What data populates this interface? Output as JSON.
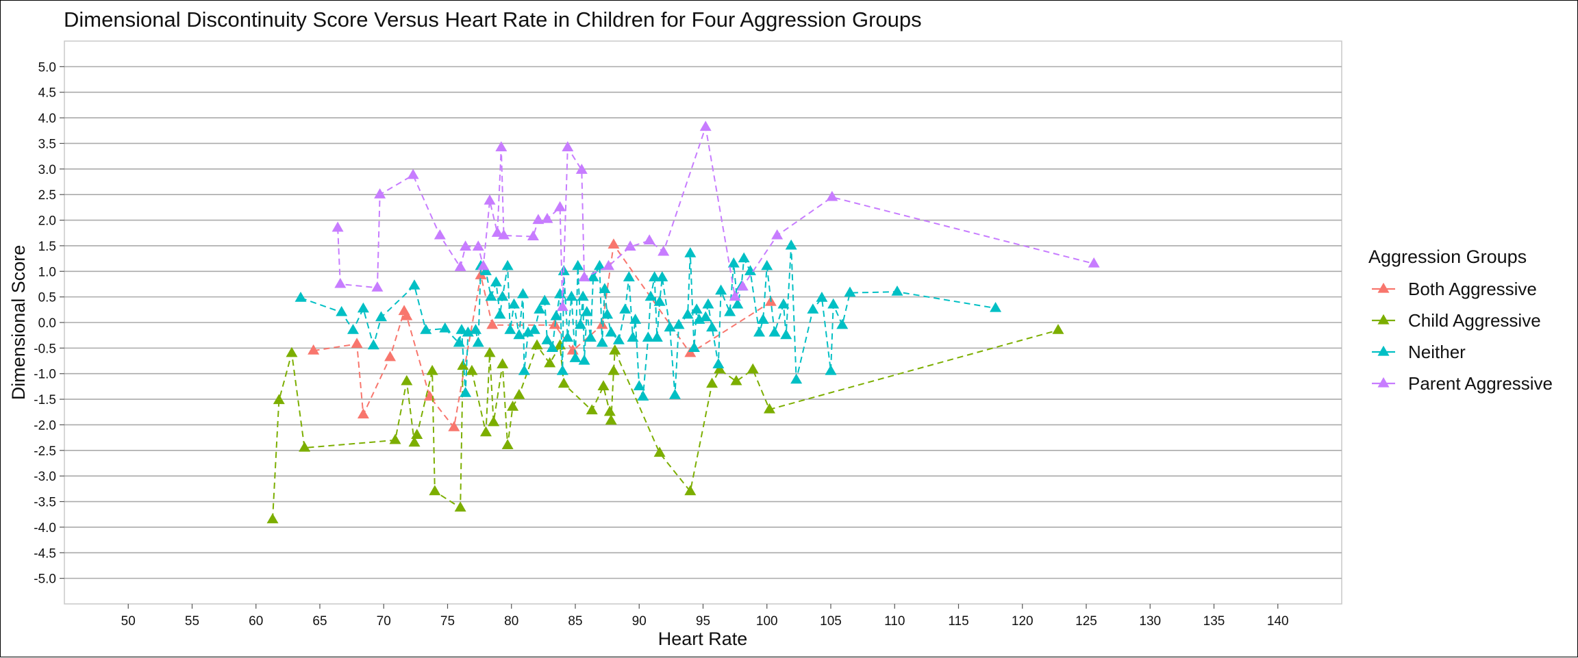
{
  "chart_data": {
    "type": "line",
    "title": "Dimensional Discontinuity Score Versus Heart Rate in Children for Four Aggression Groups",
    "xlabel": "Heart Rate",
    "ylabel": "Dimensional Score",
    "xlim": [
      45,
      145
    ],
    "ylim": [
      -5.5,
      5.5
    ],
    "x_ticks": [
      50,
      55,
      60,
      65,
      70,
      75,
      80,
      85,
      90,
      95,
      100,
      105,
      110,
      115,
      120,
      125,
      130,
      135,
      140
    ],
    "y_ticks": [
      5.0,
      4.5,
      4.0,
      3.5,
      3.0,
      2.5,
      2.0,
      1.5,
      1.0,
      0.5,
      0.0,
      -0.5,
      -1.0,
      -1.5,
      -2.0,
      -2.5,
      -3.0,
      -3.5,
      -4.0,
      -4.5,
      -5.0
    ],
    "y_tick_labels": [
      "5.0",
      "4.5",
      "4.0",
      "3.5",
      "3.0",
      "2.5",
      "2.0",
      "1.5",
      "1.0",
      "0.5",
      "0.0",
      "-0.5",
      "-1.0",
      "-1.5",
      "-2.0",
      "-2.5",
      "-3.0",
      "-3.5",
      "-4.0",
      "-4.5",
      "-5.0"
    ],
    "grid": "horizontal",
    "marker": "triangle",
    "line_style": "dashed",
    "legend_title": "Aggression Groups",
    "legend_position": "right",
    "series": [
      {
        "name": "Both Aggressive",
        "color": "#F8766D",
        "points": [
          [
            64.5,
            -0.55
          ],
          [
            67.9,
            -0.42
          ],
          [
            68.4,
            -1.8
          ],
          [
            70.5,
            -0.68
          ],
          [
            71.6,
            0.22
          ],
          [
            71.8,
            0.12
          ],
          [
            73.6,
            -1.45
          ],
          [
            75.5,
            -2.05
          ],
          [
            77.6,
            0.92
          ],
          [
            78.5,
            -0.05
          ],
          [
            83.4,
            -0.05
          ],
          [
            84.8,
            -0.55
          ],
          [
            87.1,
            -0.05
          ],
          [
            88.0,
            1.52
          ],
          [
            94.0,
            -0.6
          ],
          [
            100.3,
            0.4
          ]
        ]
      },
      {
        "name": "Child Aggressive",
        "color": "#7CAE00",
        "points": [
          [
            61.3,
            -3.85
          ],
          [
            61.8,
            -1.52
          ],
          [
            62.8,
            -0.6
          ],
          [
            63.8,
            -2.45
          ],
          [
            70.9,
            -2.3
          ],
          [
            71.8,
            -1.15
          ],
          [
            72.4,
            -2.35
          ],
          [
            72.6,
            -2.2
          ],
          [
            73.8,
            -0.95
          ],
          [
            74.0,
            -3.3
          ],
          [
            76.0,
            -3.62
          ],
          [
            76.2,
            -0.85
          ],
          [
            76.9,
            -0.95
          ],
          [
            78.0,
            -2.15
          ],
          [
            78.3,
            -0.6
          ],
          [
            78.6,
            -1.95
          ],
          [
            79.3,
            -0.82
          ],
          [
            79.7,
            -2.4
          ],
          [
            80.1,
            -1.65
          ],
          [
            80.6,
            -1.42
          ],
          [
            82.0,
            -0.45
          ],
          [
            83.0,
            -0.8
          ],
          [
            83.8,
            -0.45
          ],
          [
            84.1,
            -1.2
          ],
          [
            86.3,
            -1.72
          ],
          [
            87.2,
            -1.25
          ],
          [
            87.7,
            -1.75
          ],
          [
            87.8,
            -1.92
          ],
          [
            88.0,
            -0.95
          ],
          [
            88.1,
            -0.55
          ],
          [
            91.6,
            -2.55
          ],
          [
            94.0,
            -3.3
          ],
          [
            95.7,
            -1.2
          ],
          [
            96.3,
            -0.92
          ],
          [
            97.6,
            -1.15
          ],
          [
            98.9,
            -0.92
          ],
          [
            100.2,
            -1.7
          ],
          [
            122.8,
            -0.15
          ]
        ]
      },
      {
        "name": "Neither",
        "color": "#00BFC4",
        "points": [
          [
            63.5,
            0.48
          ],
          [
            66.7,
            0.2
          ],
          [
            67.6,
            -0.15
          ],
          [
            68.4,
            0.27
          ],
          [
            69.2,
            -0.45
          ],
          [
            69.8,
            0.1
          ],
          [
            72.4,
            0.72
          ],
          [
            73.3,
            -0.15
          ],
          [
            74.8,
            -0.12
          ],
          [
            75.9,
            -0.4
          ],
          [
            76.1,
            -0.15
          ],
          [
            76.4,
            -1.38
          ],
          [
            76.6,
            -0.2
          ],
          [
            77.2,
            -0.15
          ],
          [
            77.4,
            -0.4
          ],
          [
            77.6,
            1.1
          ],
          [
            78.0,
            1.0
          ],
          [
            78.4,
            0.5
          ],
          [
            78.8,
            0.78
          ],
          [
            79.1,
            0.15
          ],
          [
            79.3,
            0.5
          ],
          [
            79.7,
            1.1
          ],
          [
            79.9,
            -0.15
          ],
          [
            80.2,
            0.35
          ],
          [
            80.6,
            -0.25
          ],
          [
            80.9,
            0.55
          ],
          [
            81.0,
            -0.95
          ],
          [
            81.3,
            -0.2
          ],
          [
            81.8,
            -0.15
          ],
          [
            82.2,
            0.25
          ],
          [
            82.6,
            0.42
          ],
          [
            82.8,
            -0.35
          ],
          [
            83.2,
            -0.5
          ],
          [
            83.5,
            0.12
          ],
          [
            83.8,
            0.55
          ],
          [
            84.0,
            -0.95
          ],
          [
            84.1,
            1.0
          ],
          [
            84.4,
            -0.3
          ],
          [
            84.7,
            0.5
          ],
          [
            85.0,
            -0.7
          ],
          [
            85.2,
            1.1
          ],
          [
            85.4,
            -0.05
          ],
          [
            85.6,
            0.5
          ],
          [
            85.7,
            -0.75
          ],
          [
            85.9,
            0.2
          ],
          [
            86.2,
            -0.3
          ],
          [
            86.4,
            0.88
          ],
          [
            86.9,
            1.1
          ],
          [
            87.1,
            -0.4
          ],
          [
            87.3,
            0.65
          ],
          [
            87.5,
            0.15
          ],
          [
            87.8,
            -0.2
          ],
          [
            88.4,
            -0.35
          ],
          [
            88.9,
            0.25
          ],
          [
            89.2,
            0.88
          ],
          [
            89.5,
            -0.3
          ],
          [
            89.7,
            0.05
          ],
          [
            90.0,
            -1.25
          ],
          [
            90.3,
            -1.45
          ],
          [
            90.7,
            -0.3
          ],
          [
            90.9,
            0.5
          ],
          [
            91.2,
            0.88
          ],
          [
            91.4,
            -0.3
          ],
          [
            91.6,
            0.4
          ],
          [
            91.8,
            0.88
          ],
          [
            92.4,
            -0.1
          ],
          [
            92.8,
            -1.42
          ],
          [
            93.1,
            -0.05
          ],
          [
            93.8,
            0.15
          ],
          [
            94.0,
            1.35
          ],
          [
            94.3,
            -0.5
          ],
          [
            94.5,
            0.25
          ],
          [
            94.7,
            0.05
          ],
          [
            95.2,
            0.1
          ],
          [
            95.4,
            0.35
          ],
          [
            95.7,
            -0.1
          ],
          [
            96.2,
            -0.82
          ],
          [
            96.4,
            0.62
          ],
          [
            97.1,
            0.2
          ],
          [
            97.4,
            1.15
          ],
          [
            97.7,
            0.35
          ],
          [
            98.0,
            0.7
          ],
          [
            98.2,
            1.25
          ],
          [
            98.7,
            1.0
          ],
          [
            99.4,
            -0.2
          ],
          [
            99.7,
            0.05
          ],
          [
            100.0,
            1.1
          ],
          [
            100.6,
            -0.2
          ],
          [
            101.3,
            0.35
          ],
          [
            101.5,
            -0.25
          ],
          [
            101.9,
            1.5
          ],
          [
            102.3,
            -1.12
          ],
          [
            103.6,
            0.25
          ],
          [
            104.3,
            0.48
          ],
          [
            105.0,
            -0.95
          ],
          [
            105.2,
            0.35
          ],
          [
            105.9,
            -0.05
          ],
          [
            106.5,
            0.58
          ],
          [
            110.2,
            0.6
          ],
          [
            117.9,
            0.28
          ]
        ]
      },
      {
        "name": "Parent Aggressive",
        "color": "#C77CFF",
        "points": [
          [
            66.4,
            1.85
          ],
          [
            66.6,
            0.75
          ],
          [
            69.5,
            0.68
          ],
          [
            69.7,
            2.5
          ],
          [
            72.3,
            2.88
          ],
          [
            74.4,
            1.7
          ],
          [
            76.0,
            1.08
          ],
          [
            76.4,
            1.48
          ],
          [
            77.4,
            1.48
          ],
          [
            77.8,
            1.1
          ],
          [
            78.3,
            2.38
          ],
          [
            78.9,
            1.75
          ],
          [
            79.2,
            3.42
          ],
          [
            79.4,
            1.7
          ],
          [
            81.7,
            1.68
          ],
          [
            82.1,
            2.0
          ],
          [
            82.8,
            2.02
          ],
          [
            83.8,
            2.25
          ],
          [
            84.0,
            0.3
          ],
          [
            84.4,
            3.42
          ],
          [
            85.5,
            2.98
          ],
          [
            85.7,
            0.88
          ],
          [
            87.6,
            1.1
          ],
          [
            89.3,
            1.48
          ],
          [
            90.8,
            1.6
          ],
          [
            91.9,
            1.38
          ],
          [
            95.2,
            3.82
          ],
          [
            97.5,
            0.5
          ],
          [
            98.1,
            0.7
          ],
          [
            100.8,
            1.7
          ],
          [
            105.1,
            2.45
          ],
          [
            125.6,
            1.15
          ]
        ]
      }
    ]
  }
}
